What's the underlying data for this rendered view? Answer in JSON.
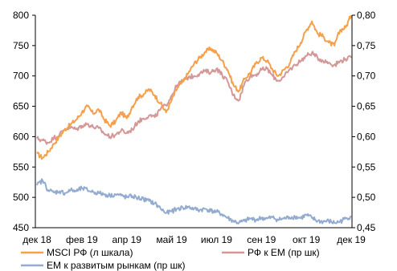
{
  "chart_data": {
    "type": "line",
    "x_tick_labels": [
      "дек 18",
      "фев 19",
      "апр 19",
      "май 19",
      "июл 19",
      "сен 19",
      "окт 19",
      "дек 19"
    ],
    "x_range": [
      "2018-12-01",
      "2019-12-31"
    ],
    "left_axis": {
      "range": [
        450,
        800
      ],
      "ticks": [
        "450",
        "500",
        "550",
        "600",
        "650",
        "700",
        "750",
        "800"
      ]
    },
    "right_axis": {
      "range": [
        0.45,
        0.8
      ],
      "ticks": [
        "0,45",
        "0,50",
        "0,55",
        "0,60",
        "0,65",
        "0,70",
        "0,75",
        "0,80"
      ]
    },
    "grid": false,
    "legend_position": "bottom",
    "series": [
      {
        "name": "MSCI РФ (л шкала)",
        "axis": "left",
        "color": "#F5A04A",
        "points": [
          [
            "2018-12-03",
            572
          ],
          [
            "2018-12-10",
            565
          ],
          [
            "2018-12-17",
            575
          ],
          [
            "2018-12-24",
            588
          ],
          [
            "2018-12-31",
            600
          ],
          [
            "2019-01-07",
            612
          ],
          [
            "2019-01-14",
            620
          ],
          [
            "2019-01-21",
            628
          ],
          [
            "2019-01-28",
            640
          ],
          [
            "2019-02-04",
            650
          ],
          [
            "2019-02-11",
            638
          ],
          [
            "2019-02-18",
            645
          ],
          [
            "2019-02-25",
            628
          ],
          [
            "2019-03-04",
            618
          ],
          [
            "2019-03-11",
            625
          ],
          [
            "2019-03-18",
            640
          ],
          [
            "2019-03-25",
            630
          ],
          [
            "2019-04-01",
            650
          ],
          [
            "2019-04-08",
            665
          ],
          [
            "2019-04-15",
            670
          ],
          [
            "2019-04-22",
            678
          ],
          [
            "2019-04-29",
            668
          ],
          [
            "2019-05-06",
            655
          ],
          [
            "2019-05-13",
            640
          ],
          [
            "2019-05-20",
            660
          ],
          [
            "2019-05-27",
            680
          ],
          [
            "2019-06-03",
            690
          ],
          [
            "2019-06-10",
            705
          ],
          [
            "2019-06-17",
            720
          ],
          [
            "2019-06-24",
            730
          ],
          [
            "2019-07-01",
            740
          ],
          [
            "2019-07-08",
            745
          ],
          [
            "2019-07-15",
            738
          ],
          [
            "2019-07-22",
            725
          ],
          [
            "2019-07-29",
            710
          ],
          [
            "2019-08-05",
            685
          ],
          [
            "2019-08-12",
            675
          ],
          [
            "2019-08-19",
            695
          ],
          [
            "2019-08-26",
            705
          ],
          [
            "2019-09-02",
            720
          ],
          [
            "2019-09-09",
            730
          ],
          [
            "2019-09-16",
            725
          ],
          [
            "2019-09-23",
            710
          ],
          [
            "2019-09-30",
            700
          ],
          [
            "2019-10-07",
            710
          ],
          [
            "2019-10-14",
            720
          ],
          [
            "2019-10-21",
            740
          ],
          [
            "2019-10-28",
            755
          ],
          [
            "2019-11-04",
            775
          ],
          [
            "2019-11-11",
            790
          ],
          [
            "2019-11-18",
            770
          ],
          [
            "2019-11-25",
            765
          ],
          [
            "2019-12-02",
            755
          ],
          [
            "2019-12-09",
            750
          ],
          [
            "2019-12-16",
            775
          ],
          [
            "2019-12-23",
            780
          ],
          [
            "2019-12-30",
            800
          ]
        ]
      },
      {
        "name": "РФ к ЕМ (пр шк)",
        "axis": "right",
        "color": "#D49898",
        "points": [
          [
            "2018-12-03",
            0.597
          ],
          [
            "2018-12-10",
            0.594
          ],
          [
            "2018-12-17",
            0.59
          ],
          [
            "2018-12-24",
            0.598
          ],
          [
            "2018-12-31",
            0.603
          ],
          [
            "2019-01-07",
            0.613
          ],
          [
            "2019-01-14",
            0.615
          ],
          [
            "2019-01-21",
            0.612
          ],
          [
            "2019-01-28",
            0.618
          ],
          [
            "2019-02-04",
            0.621
          ],
          [
            "2019-02-11",
            0.616
          ],
          [
            "2019-02-18",
            0.614
          ],
          [
            "2019-02-25",
            0.605
          ],
          [
            "2019-03-04",
            0.6
          ],
          [
            "2019-03-11",
            0.603
          ],
          [
            "2019-03-18",
            0.61
          ],
          [
            "2019-03-25",
            0.606
          ],
          [
            "2019-04-01",
            0.612
          ],
          [
            "2019-04-08",
            0.625
          ],
          [
            "2019-04-15",
            0.63
          ],
          [
            "2019-04-22",
            0.635
          ],
          [
            "2019-04-29",
            0.632
          ],
          [
            "2019-05-06",
            0.645
          ],
          [
            "2019-05-13",
            0.652
          ],
          [
            "2019-05-20",
            0.668
          ],
          [
            "2019-05-27",
            0.685
          ],
          [
            "2019-06-03",
            0.692
          ],
          [
            "2019-06-10",
            0.698
          ],
          [
            "2019-06-17",
            0.7
          ],
          [
            "2019-06-24",
            0.704
          ],
          [
            "2019-07-01",
            0.708
          ],
          [
            "2019-07-08",
            0.706
          ],
          [
            "2019-07-15",
            0.712
          ],
          [
            "2019-07-22",
            0.702
          ],
          [
            "2019-07-29",
            0.69
          ],
          [
            "2019-08-05",
            0.668
          ],
          [
            "2019-08-12",
            0.66
          ],
          [
            "2019-08-19",
            0.688
          ],
          [
            "2019-08-26",
            0.7
          ],
          [
            "2019-09-02",
            0.702
          ],
          [
            "2019-09-09",
            0.71
          ],
          [
            "2019-09-16",
            0.712
          ],
          [
            "2019-09-23",
            0.7
          ],
          [
            "2019-09-30",
            0.692
          ],
          [
            "2019-10-07",
            0.698
          ],
          [
            "2019-10-14",
            0.71
          ],
          [
            "2019-10-21",
            0.718
          ],
          [
            "2019-10-28",
            0.725
          ],
          [
            "2019-11-04",
            0.733
          ],
          [
            "2019-11-11",
            0.738
          ],
          [
            "2019-11-18",
            0.73
          ],
          [
            "2019-11-25",
            0.725
          ],
          [
            "2019-12-02",
            0.722
          ],
          [
            "2019-12-09",
            0.718
          ],
          [
            "2019-12-16",
            0.724
          ],
          [
            "2019-12-23",
            0.728
          ],
          [
            "2019-12-30",
            0.73
          ]
        ]
      },
      {
        "name": "ЕМ к развитым рынкам (пр шк)",
        "axis": "right",
        "color": "#92ABCF",
        "points": [
          [
            "2018-12-03",
            0.52
          ],
          [
            "2018-12-10",
            0.528
          ],
          [
            "2018-12-17",
            0.512
          ],
          [
            "2018-12-24",
            0.508
          ],
          [
            "2018-12-31",
            0.51
          ],
          [
            "2019-01-07",
            0.507
          ],
          [
            "2019-01-14",
            0.512
          ],
          [
            "2019-01-21",
            0.51
          ],
          [
            "2019-01-28",
            0.515
          ],
          [
            "2019-02-04",
            0.512
          ],
          [
            "2019-02-11",
            0.509
          ],
          [
            "2019-02-18",
            0.507
          ],
          [
            "2019-02-25",
            0.505
          ],
          [
            "2019-03-04",
            0.503
          ],
          [
            "2019-03-11",
            0.505
          ],
          [
            "2019-03-18",
            0.503
          ],
          [
            "2019-03-25",
            0.5
          ],
          [
            "2019-04-01",
            0.502
          ],
          [
            "2019-04-08",
            0.499
          ],
          [
            "2019-04-15",
            0.497
          ],
          [
            "2019-04-22",
            0.494
          ],
          [
            "2019-04-29",
            0.49
          ],
          [
            "2019-05-06",
            0.482
          ],
          [
            "2019-05-13",
            0.474
          ],
          [
            "2019-05-20",
            0.477
          ],
          [
            "2019-05-27",
            0.481
          ],
          [
            "2019-06-03",
            0.483
          ],
          [
            "2019-06-10",
            0.484
          ],
          [
            "2019-06-17",
            0.481
          ],
          [
            "2019-06-24",
            0.479
          ],
          [
            "2019-07-01",
            0.481
          ],
          [
            "2019-07-08",
            0.478
          ],
          [
            "2019-07-15",
            0.476
          ],
          [
            "2019-07-22",
            0.472
          ],
          [
            "2019-07-29",
            0.466
          ],
          [
            "2019-08-05",
            0.461
          ],
          [
            "2019-08-12",
            0.458
          ],
          [
            "2019-08-19",
            0.461
          ],
          [
            "2019-08-26",
            0.465
          ],
          [
            "2019-09-02",
            0.463
          ],
          [
            "2019-09-09",
            0.466
          ],
          [
            "2019-09-16",
            0.465
          ],
          [
            "2019-09-23",
            0.467
          ],
          [
            "2019-09-30",
            0.463
          ],
          [
            "2019-10-07",
            0.465
          ],
          [
            "2019-10-14",
            0.467
          ],
          [
            "2019-10-21",
            0.468
          ],
          [
            "2019-10-28",
            0.466
          ],
          [
            "2019-11-04",
            0.471
          ],
          [
            "2019-11-11",
            0.466
          ],
          [
            "2019-11-18",
            0.461
          ],
          [
            "2019-11-25",
            0.46
          ],
          [
            "2019-12-02",
            0.461
          ],
          [
            "2019-12-09",
            0.458
          ],
          [
            "2019-12-16",
            0.46
          ],
          [
            "2019-12-23",
            0.465
          ],
          [
            "2019-12-30",
            0.469
          ]
        ]
      }
    ]
  }
}
